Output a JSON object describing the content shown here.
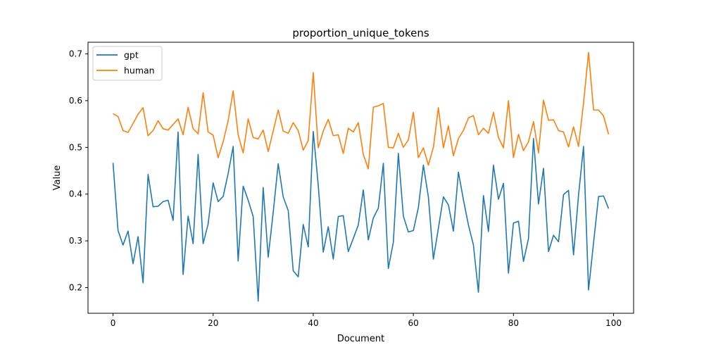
{
  "chart_data": {
    "type": "line",
    "title": "proportion_unique_tokens",
    "xlabel": "Document",
    "ylabel": "Value",
    "xlim": [
      -5,
      104
    ],
    "ylim": [
      0.145,
      0.725
    ],
    "xticks": [
      0,
      20,
      40,
      60,
      80,
      100
    ],
    "yticks": [
      0.2,
      0.3,
      0.4,
      0.5,
      0.6,
      0.7
    ],
    "grid": false,
    "legend_position": "top-left",
    "series": [
      {
        "name": "gpt",
        "color": "#1f77b4",
        "values": [
          0.467,
          0.322,
          0.291,
          0.321,
          0.251,
          0.309,
          0.21,
          0.442,
          0.373,
          0.374,
          0.384,
          0.387,
          0.344,
          0.533,
          0.228,
          0.353,
          0.294,
          0.485,
          0.294,
          0.336,
          0.424,
          0.384,
          0.395,
          0.444,
          0.502,
          0.257,
          0.417,
          0.387,
          0.352,
          0.171,
          0.414,
          0.265,
          0.361,
          0.465,
          0.394,
          0.365,
          0.236,
          0.223,
          0.335,
          0.287,
          0.534,
          0.419,
          0.276,
          0.33,
          0.261,
          0.352,
          0.354,
          0.277,
          0.305,
          0.334,
          0.409,
          0.302,
          0.349,
          0.37,
          0.466,
          0.241,
          0.297,
          0.487,
          0.353,
          0.319,
          0.322,
          0.371,
          0.462,
          0.394,
          0.261,
          0.327,
          0.394,
          0.377,
          0.321,
          0.447,
          0.388,
          0.334,
          0.291,
          0.19,
          0.397,
          0.32,
          0.462,
          0.389,
          0.423,
          0.231,
          0.338,
          0.342,
          0.256,
          0.305,
          0.519,
          0.379,
          0.455,
          0.277,
          0.312,
          0.298,
          0.399,
          0.408,
          0.27,
          0.398,
          0.502,
          0.195,
          0.296,
          0.395,
          0.396,
          0.369
        ]
      },
      {
        "name": "human",
        "color": "#ff7f0e",
        "values": [
          0.572,
          0.566,
          0.536,
          0.532,
          0.551,
          0.571,
          0.585,
          0.525,
          0.536,
          0.557,
          0.54,
          0.537,
          0.549,
          0.561,
          0.527,
          0.586,
          0.54,
          0.529,
          0.617,
          0.533,
          0.526,
          0.478,
          0.512,
          0.557,
          0.621,
          0.527,
          0.488,
          0.561,
          0.521,
          0.518,
          0.537,
          0.491,
          0.535,
          0.58,
          0.535,
          0.53,
          0.553,
          0.536,
          0.494,
          0.515,
          0.66,
          0.499,
          0.535,
          0.56,
          0.525,
          0.527,
          0.487,
          0.541,
          0.533,
          0.553,
          0.485,
          0.454,
          0.586,
          0.589,
          0.594,
          0.5,
          0.499,
          0.53,
          0.5,
          0.516,
          0.575,
          0.478,
          0.499,
          0.462,
          0.5,
          0.585,
          0.499,
          0.546,
          0.482,
          0.519,
          0.536,
          0.563,
          0.568,
          0.527,
          0.541,
          0.53,
          0.575,
          0.521,
          0.499,
          0.6,
          0.478,
          0.528,
          0.493,
          0.512,
          0.555,
          0.488,
          0.601,
          0.558,
          0.559,
          0.536,
          0.533,
          0.501,
          0.544,
          0.502,
          0.595,
          0.703,
          0.58,
          0.58,
          0.567,
          0.528
        ]
      }
    ]
  }
}
